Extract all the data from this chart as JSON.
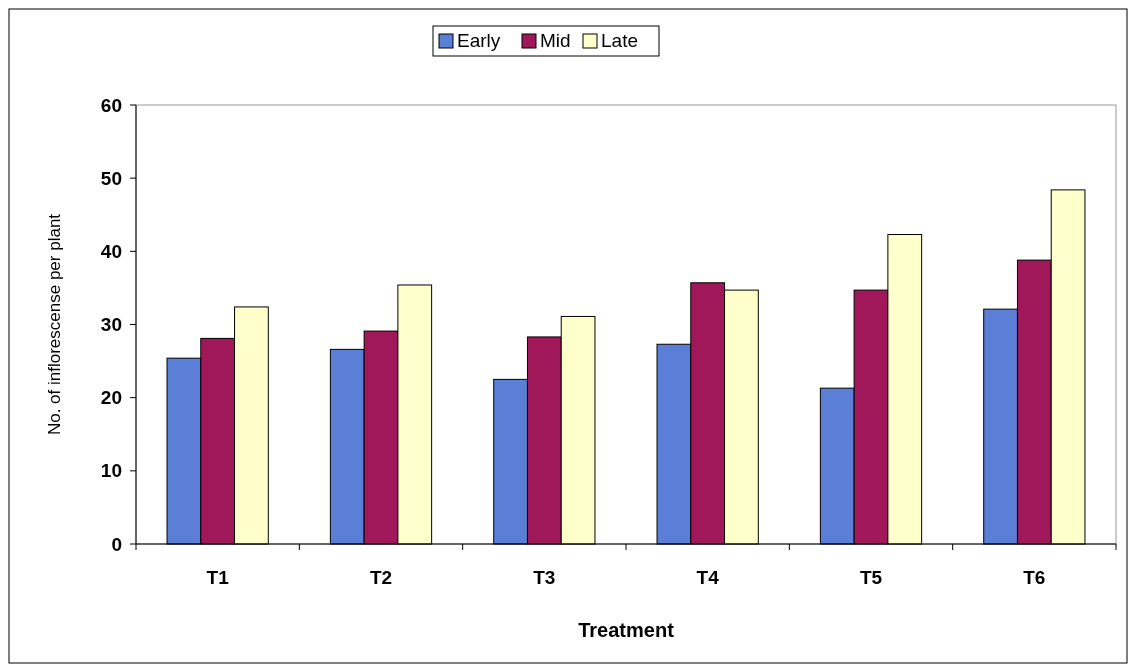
{
  "chart_data": {
    "type": "bar",
    "xlabel": "Treatment",
    "ylabel": "No. of inflorescense per plant",
    "categories": [
      "T1",
      "T2",
      "T3",
      "T4",
      "T5",
      "T6"
    ],
    "series": [
      {
        "name": "Early",
        "color": "#5b7fd6",
        "values": [
          25.4,
          26.6,
          22.5,
          27.3,
          21.3,
          32.1
        ]
      },
      {
        "name": "Mid",
        "color": "#a0185a",
        "values": [
          28.1,
          29.1,
          28.3,
          35.7,
          34.7,
          38.8
        ]
      },
      {
        "name": "Late",
        "color": "#ffffcc",
        "values": [
          32.4,
          35.4,
          31.1,
          34.7,
          42.3,
          48.4
        ]
      }
    ],
    "ylim": [
      0,
      60
    ],
    "yticks": [
      0,
      10,
      20,
      30,
      40,
      50,
      60
    ],
    "grid": false,
    "legend": "top"
  }
}
